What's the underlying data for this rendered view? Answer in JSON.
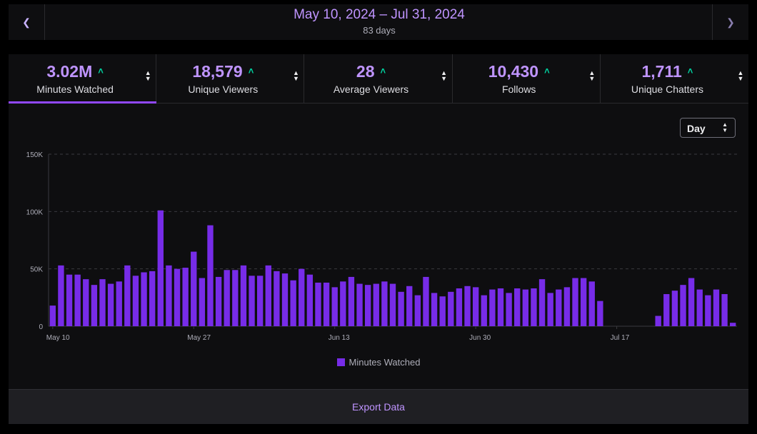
{
  "date_nav": {
    "range": "May 10, 2024 – Jul 31, 2024",
    "days": "83 days",
    "prev_icon": "chevron-left-icon",
    "next_icon": "chevron-right-icon"
  },
  "tabs": [
    {
      "value": "3.02M",
      "label": "Minutes Watched",
      "active": true
    },
    {
      "value": "18,579",
      "label": "Unique Viewers"
    },
    {
      "value": "28",
      "label": "Average Viewers"
    },
    {
      "value": "10,430",
      "label": "Follows"
    },
    {
      "value": "1,711",
      "label": "Unique Chatters"
    }
  ],
  "trend_up_symbol": "˄",
  "interval_select": {
    "value": "Day"
  },
  "colors": {
    "accent": "#9147ff",
    "bar": "#772ce8",
    "trend_up": "#00d6a3",
    "text_accent": "#bf94ff"
  },
  "chart_data": {
    "type": "bar",
    "ylim": [
      0,
      150000
    ],
    "y_ticks": [
      {
        "value": 0,
        "label": "0"
      },
      {
        "value": 50000,
        "label": "50K"
      },
      {
        "value": 100000,
        "label": "100K"
      },
      {
        "value": 150000,
        "label": "150K"
      }
    ],
    "x_ticks": [
      {
        "index": 0,
        "label": "May 10"
      },
      {
        "index": 17,
        "label": "May 27"
      },
      {
        "index": 34,
        "label": "Jun 13"
      },
      {
        "index": 51,
        "label": "Jun 30"
      },
      {
        "index": 68,
        "label": "Jul 17"
      }
    ],
    "grid": true,
    "series": [
      {
        "name": "Minutes Watched",
        "values": [
          18000,
          53000,
          45000,
          45000,
          41000,
          36000,
          41000,
          37000,
          39000,
          53000,
          44000,
          47000,
          48000,
          101000,
          53000,
          50000,
          51000,
          65000,
          42000,
          88000,
          43000,
          49000,
          49000,
          53000,
          44000,
          44000,
          53000,
          48000,
          46000,
          40000,
          50000,
          45000,
          38000,
          38000,
          34000,
          39000,
          43000,
          37000,
          36000,
          37000,
          39000,
          37000,
          30000,
          35000,
          27000,
          43000,
          29000,
          26000,
          30000,
          33000,
          35000,
          34000,
          27000,
          32000,
          33000,
          29000,
          33000,
          32000,
          33000,
          41000,
          29000,
          32000,
          34000,
          42000,
          42000,
          39000,
          22000,
          0,
          0,
          0,
          0,
          0,
          0,
          9000,
          28000,
          31000,
          36000,
          42000,
          32000,
          27000,
          32000,
          28000,
          3000
        ]
      }
    ]
  },
  "legend": {
    "label": "Minutes Watched"
  },
  "export": {
    "label": "Export Data"
  }
}
